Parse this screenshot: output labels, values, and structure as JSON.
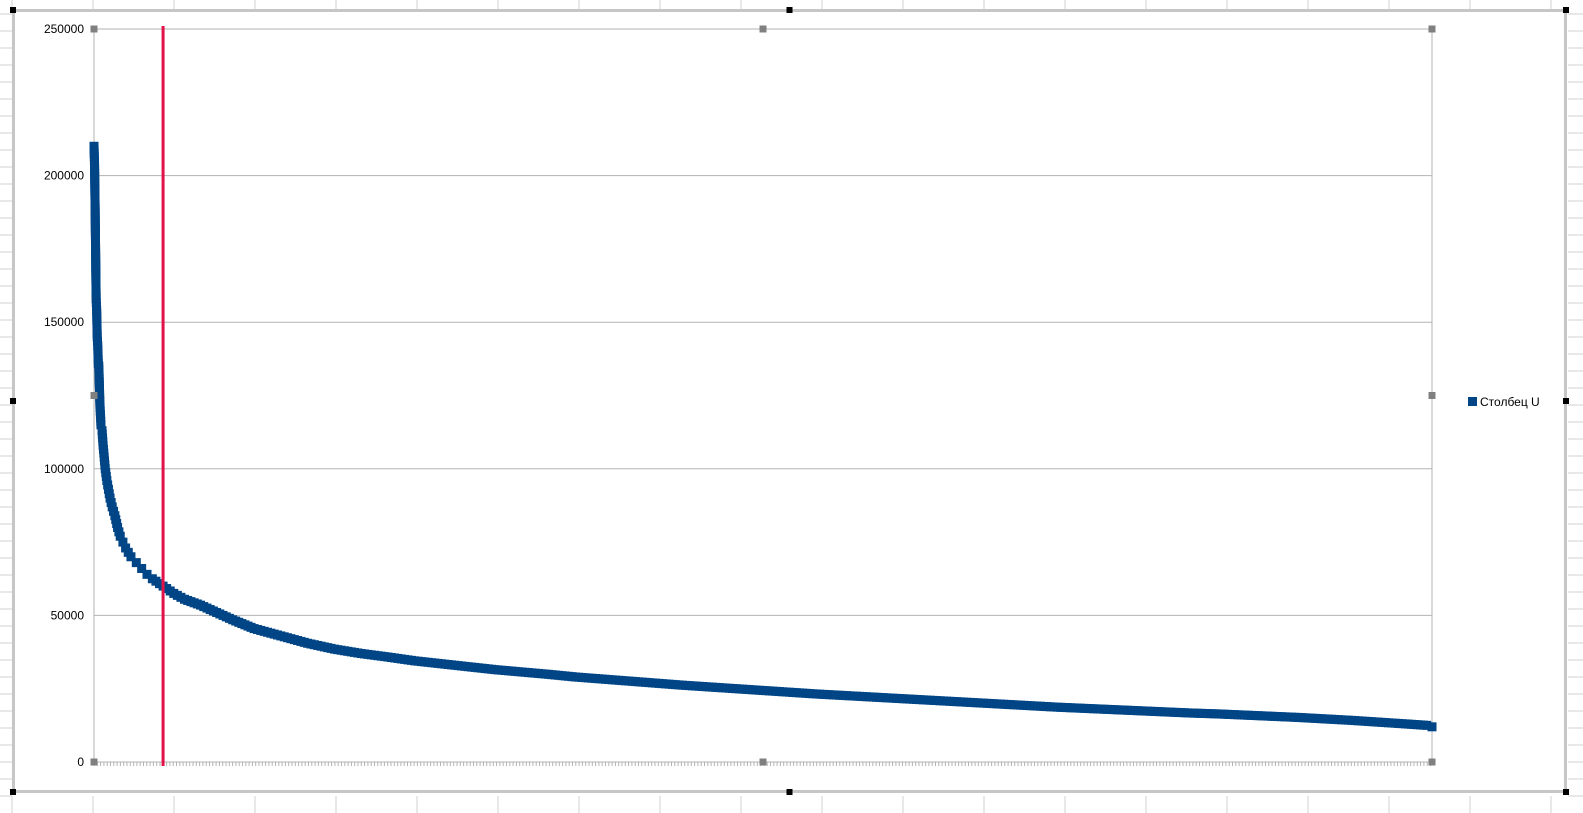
{
  "chart_data": {
    "type": "scatter",
    "title": "",
    "xlabel": "",
    "ylabel": "",
    "ylim": [
      0,
      250000
    ],
    "yticks": [
      "0",
      "50000",
      "100000",
      "150000",
      "200000",
      "250000"
    ],
    "grid": true,
    "legend_position": "right",
    "marker": "square",
    "series": [
      {
        "name": "Столбец U",
        "color": "#004586",
        "x": [
          1,
          2,
          3,
          4,
          5,
          6,
          7,
          8,
          9,
          10,
          12,
          14,
          16,
          18,
          20,
          22,
          25,
          28,
          31,
          35,
          40,
          45,
          50,
          55,
          60,
          70,
          80,
          90,
          100,
          110,
          130,
          150,
          170,
          200,
          230,
          260,
          300,
          350,
          400,
          450,
          500,
          550,
          600,
          650,
          700,
          750,
          800,
          850,
          900,
          950,
          1000,
          1050,
          1100,
          1150,
          1200,
          1250,
          1300,
          1350,
          1400,
          1450,
          1500,
          1550,
          1600,
          1650,
          1700,
          1750,
          1800,
          1850,
          1900,
          1950,
          2000,
          2050,
          2100,
          2150,
          2200,
          2250,
          2300,
          2350,
          2400,
          2450,
          2490,
          2500
        ],
        "y": [
          210000,
          204000,
          190000,
          174000,
          158000,
          154000,
          145000,
          142000,
          136000,
          135000,
          122000,
          115000,
          113000,
          108000,
          104000,
          100000,
          96000,
          93000,
          90000,
          87000,
          84000,
          80000,
          77000,
          75000,
          73000,
          70000,
          68000,
          66000,
          64000,
          62500,
          60000,
          57500,
          55500,
          53500,
          51000,
          48500,
          45500,
          43000,
          40500,
          38500,
          37000,
          35800,
          34500,
          33500,
          32500,
          31500,
          30700,
          29900,
          29000,
          28300,
          27600,
          26900,
          26200,
          25600,
          25000,
          24400,
          23800,
          23200,
          22700,
          22200,
          21700,
          21200,
          20700,
          20200,
          19700,
          19200,
          18700,
          18300,
          17900,
          17500,
          17100,
          16700,
          16400,
          16000,
          15600,
          15200,
          14700,
          14200,
          13600,
          13000,
          12500,
          12000
        ]
      }
    ],
    "annotation": {
      "type": "vertical-line",
      "x": 130,
      "color": "#e3124b"
    }
  }
}
